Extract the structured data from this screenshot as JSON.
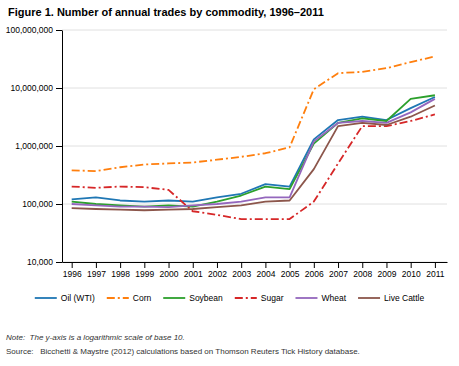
{
  "chart_data": {
    "type": "line",
    "title": "Figure 1. Number of annual trades by commodity, 1996–2011",
    "annotations": [
      "Note:  The y-axis is a logarithmic scale of base 10.",
      "Source:   Bicchetti & Maystre (2012) calculations based on Thomson Reuters Tick History database."
    ],
    "x": [
      1996,
      1997,
      1998,
      1999,
      2000,
      2001,
      2002,
      2003,
      2004,
      2005,
      2006,
      2007,
      2008,
      2009,
      2010,
      2011
    ],
    "xlim": [
      1995.6,
      2011.5
    ],
    "xticks": [
      1996,
      1997,
      1998,
      1999,
      2000,
      2001,
      2002,
      2003,
      2004,
      2005,
      2006,
      2007,
      2008,
      2009,
      2010,
      2011
    ],
    "series": [
      {
        "name": "Oil (WTI)",
        "line_style": "solid",
        "values": [
          120000,
          130000,
          115000,
          110000,
          115000,
          110000,
          130000,
          150000,
          220000,
          200000,
          1300000,
          2800000,
          3200000,
          2800000,
          4500000,
          7000000
        ]
      },
      {
        "name": "Corn",
        "line_style": "dashdot",
        "values": [
          380000,
          370000,
          430000,
          480000,
          500000,
          520000,
          580000,
          650000,
          750000,
          950000,
          9500000,
          18000000,
          19000000,
          22000000,
          28000000,
          35000000
        ]
      },
      {
        "name": "Soybean",
        "line_style": "solid",
        "values": [
          110000,
          100000,
          95000,
          90000,
          95000,
          90000,
          110000,
          140000,
          200000,
          180000,
          1100000,
          2500000,
          3000000,
          2700000,
          6500000,
          7500000
        ]
      },
      {
        "name": "Sugar",
        "line_style": "dashdot",
        "values": [
          200000,
          190000,
          200000,
          195000,
          175000,
          75000,
          65000,
          55000,
          55000,
          55000,
          110000,
          500000,
          2200000,
          2200000,
          2700000,
          3500000
        ]
      },
      {
        "name": "Wheat",
        "line_style": "solid",
        "values": [
          100000,
          95000,
          90000,
          90000,
          88000,
          95000,
          100000,
          110000,
          130000,
          130000,
          1200000,
          2500000,
          2700000,
          2500000,
          3800000,
          6500000
        ]
      },
      {
        "name": "Live Cattle",
        "line_style": "solid",
        "values": [
          85000,
          82000,
          80000,
          78000,
          80000,
          82000,
          88000,
          95000,
          110000,
          115000,
          400000,
          2200000,
          2500000,
          2300000,
          3200000,
          5000000
        ]
      }
    ],
    "log": "y",
    "ylim": [
      10000,
      100000000
    ],
    "yticks": [
      {
        "value": 10000,
        "label": "10,000"
      },
      {
        "value": 100000,
        "label": "100,000"
      },
      {
        "value": 1000000,
        "label": "1,000,000"
      },
      {
        "value": 10000000,
        "label": "10,000,000"
      },
      {
        "value": 100000000,
        "label": "100,000,000"
      }
    ],
    "grid": true,
    "legend": "bottom"
  }
}
